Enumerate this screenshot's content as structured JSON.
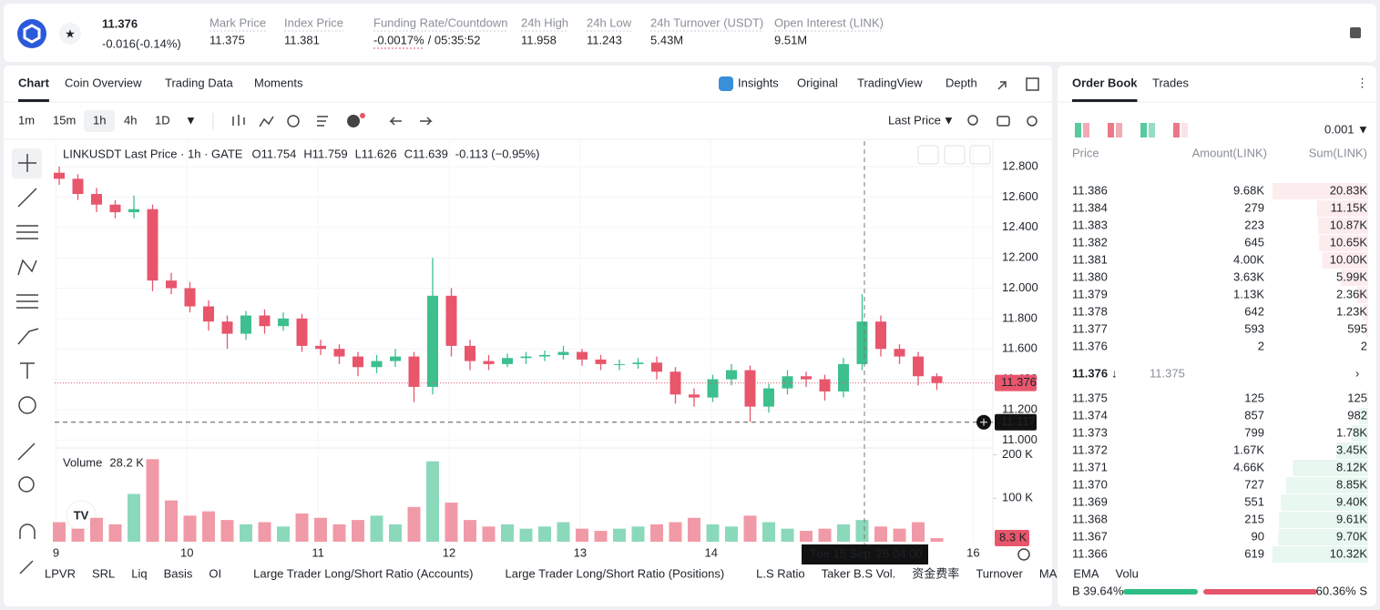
{
  "header": {
    "price": "11.376",
    "change": "-0.016(-0.14%)",
    "stats": [
      {
        "label": "Mark Price",
        "value": "11.375"
      },
      {
        "label": "Index Price",
        "value": "11.381"
      },
      {
        "label": "Funding Rate/Countdown",
        "value": "-0.0017%",
        "extra": "/ 05:35:52"
      },
      {
        "label": "24h High",
        "value": "11.958"
      },
      {
        "label": "24h Low",
        "value": "11.243"
      },
      {
        "label": "24h Turnover (USDT)",
        "value": "5.43M"
      },
      {
        "label": "Open Interest (LINK)",
        "value": "9.51M"
      }
    ]
  },
  "tabs": [
    "Chart",
    "Coin Overview",
    "Trading Data",
    "Moments"
  ],
  "views": [
    "Insights",
    "Original",
    "TradingView",
    "Depth"
  ],
  "intervals": [
    "1m",
    "15m",
    "1h",
    "4h",
    "1D"
  ],
  "price_type": "Last Price",
  "indicators": [
    "LPVR",
    "SRL",
    "Liq",
    "Basis",
    "OI",
    "Large Trader Long/Short Ratio (Accounts)",
    "Large Trader Long/Short Ratio (Positions)",
    "L.S Ratio",
    "Taker B.S Vol.",
    "资金费率",
    "Turnover",
    "MA",
    "EMA",
    "Volu"
  ],
  "chart": {
    "type": "candlestick",
    "legend": "LINKUSDT Last Price · 1h · GATE",
    "ohlc": [
      "O11.754",
      "H11.759",
      "L11.626",
      "C11.639"
    ],
    "legend_change": "-0.113 (−0.95%)",
    "up_color": "#3dbf8e",
    "down_color": "#e8566c",
    "ylim": [
      10.96,
      12.95
    ],
    "yticks": [
      {
        "value": 11.0,
        "label": "11.000"
      },
      {
        "value": 11.2,
        "label": "11.200"
      },
      {
        "value": 11.4,
        "label": "11.400"
      },
      {
        "value": 11.6,
        "label": "11.600"
      },
      {
        "value": 11.8,
        "label": "11.800"
      },
      {
        "value": 12.0,
        "label": "12.000"
      },
      {
        "value": 12.2,
        "label": "12.200"
      },
      {
        "value": 12.4,
        "label": "12.400"
      },
      {
        "value": 12.6,
        "label": "12.600"
      },
      {
        "value": 12.8,
        "label": "12.800"
      }
    ],
    "xlim": [
      8.99,
      16.15
    ],
    "xticks": [
      9,
      10,
      11,
      12,
      13,
      14,
      16
    ],
    "candles": {
      "open": [
        12.76,
        12.72,
        12.62,
        12.55,
        12.5,
        12.52,
        12.05,
        12.0,
        11.88,
        11.78,
        11.7,
        11.82,
        11.75,
        11.8,
        11.62,
        11.6,
        11.55,
        11.48,
        11.52,
        11.55,
        11.35,
        11.95,
        11.62,
        11.52,
        11.5,
        11.54,
        11.55,
        11.56,
        11.58,
        11.53,
        11.5,
        11.5,
        11.51,
        11.45,
        11.3,
        11.28,
        11.4,
        11.46,
        11.22,
        11.34,
        11.42,
        11.4,
        11.32,
        11.5,
        11.78,
        11.6,
        11.55,
        11.42
      ],
      "high": [
        12.8,
        12.75,
        12.66,
        12.58,
        12.61,
        12.55,
        12.1,
        12.04,
        11.92,
        11.82,
        11.85,
        11.86,
        11.84,
        11.83,
        11.66,
        11.63,
        11.58,
        11.56,
        11.6,
        11.58,
        12.2,
        12.0,
        11.66,
        11.56,
        11.57,
        11.58,
        11.59,
        11.62,
        11.6,
        11.56,
        11.53,
        11.54,
        11.55,
        11.48,
        11.34,
        11.43,
        11.5,
        11.49,
        11.37,
        11.46,
        11.45,
        11.43,
        11.54,
        11.96,
        11.82,
        11.63,
        11.58,
        11.44
      ],
      "low": [
        12.68,
        12.58,
        12.5,
        12.46,
        12.46,
        11.98,
        11.96,
        11.84,
        11.72,
        11.6,
        11.66,
        11.7,
        11.72,
        11.58,
        11.56,
        11.5,
        11.42,
        11.44,
        11.48,
        11.25,
        11.3,
        11.55,
        11.46,
        11.46,
        11.48,
        11.5,
        11.52,
        11.53,
        11.49,
        11.46,
        11.46,
        11.47,
        11.4,
        11.24,
        11.22,
        11.25,
        11.36,
        11.12,
        11.18,
        11.3,
        11.35,
        11.26,
        11.28,
        11.46,
        11.55,
        11.5,
        11.36,
        11.33
      ],
      "close": [
        12.72,
        12.62,
        12.55,
        12.5,
        12.52,
        12.05,
        12.0,
        11.88,
        11.78,
        11.7,
        11.82,
        11.75,
        11.8,
        11.62,
        11.6,
        11.55,
        11.48,
        11.52,
        11.55,
        11.35,
        11.95,
        11.62,
        11.52,
        11.5,
        11.54,
        11.55,
        11.56,
        11.58,
        11.53,
        11.5,
        11.5,
        11.51,
        11.45,
        11.3,
        11.28,
        11.4,
        11.46,
        11.22,
        11.34,
        11.42,
        11.4,
        11.32,
        11.5,
        11.78,
        11.6,
        11.55,
        11.42,
        11.376
      ]
    },
    "last_price": 11.376,
    "crosshair_price": 11.117,
    "crosshair_date": "Tue 15 Sep '26",
    "crosshair_time": "04:00",
    "volume_title": "Volume",
    "volume_hover": "28.2 K",
    "volume_last": "8.3 K",
    "volume_ylim": [
      0,
      220000
    ],
    "volume_ticks": [
      {
        "value": 100000,
        "label": "100 K"
      },
      {
        "value": 200000,
        "label": "200 K"
      }
    ],
    "volume": [
      45000,
      30000,
      55000,
      40000,
      110000,
      190000,
      95000,
      60000,
      70000,
      50000,
      40000,
      45000,
      35000,
      65000,
      55000,
      40000,
      50000,
      60000,
      40000,
      80000,
      185000,
      90000,
      50000,
      35000,
      40000,
      30000,
      35000,
      45000,
      30000,
      25000,
      30000,
      35000,
      40000,
      45000,
      55000,
      40000,
      35000,
      60000,
      45000,
      30000,
      25000,
      30000,
      40000,
      50000,
      35000,
      30000,
      45000,
      8300
    ]
  },
  "order_book": {
    "tabs": [
      "Order Book",
      "Trades"
    ],
    "precision": "0.001",
    "columns": [
      "Price",
      "Amount(LINK)",
      "Sum(LINK)"
    ],
    "asks": [
      {
        "price": "11.386",
        "amount": "9.68K",
        "sum": {
          "value": 20830,
          "label": "20.83K"
        }
      },
      {
        "price": "11.384",
        "amount": "279",
        "sum": {
          "value": 11150,
          "label": "11.15K"
        }
      },
      {
        "price": "11.383",
        "amount": "223",
        "sum": {
          "value": 10870,
          "label": "10.87K"
        }
      },
      {
        "price": "11.382",
        "amount": "645",
        "sum": {
          "value": 10650,
          "label": "10.65K"
        }
      },
      {
        "price": "11.381",
        "amount": "4.00K",
        "sum": {
          "value": 10000,
          "label": "10.00K"
        }
      },
      {
        "price": "11.380",
        "amount": "3.63K",
        "sum": {
          "value": 5990,
          "label": "5.99K"
        }
      },
      {
        "price": "11.379",
        "amount": "1.13K",
        "sum": {
          "value": 2360,
          "label": "2.36K"
        }
      },
      {
        "price": "11.378",
        "amount": "642",
        "sum": {
          "value": 1230,
          "label": "1.23K"
        }
      },
      {
        "price": "11.377",
        "amount": "593",
        "sum": 595
      },
      {
        "price": "11.376",
        "amount": "2",
        "sum": 2
      }
    ],
    "mid_price": "11.376",
    "mark_price": "11.375",
    "bids": [
      {
        "price": "11.375",
        "amount": "125",
        "sum": 125
      },
      {
        "price": "11.374",
        "amount": "857",
        "sum": 982
      },
      {
        "price": "11.373",
        "amount": "799",
        "sum": {
          "value": 1780,
          "label": "1.78K"
        }
      },
      {
        "price": "11.372",
        "amount": "1.67K",
        "sum": {
          "value": 3450,
          "label": "3.45K"
        }
      },
      {
        "price": "11.371",
        "amount": "4.66K",
        "sum": {
          "value": 8120,
          "label": "8.12K"
        }
      },
      {
        "price": "11.370",
        "amount": "727",
        "sum": {
          "value": 8850,
          "label": "8.85K"
        }
      },
      {
        "price": "11.369",
        "amount": "551",
        "sum": {
          "value": 9400,
          "label": "9.40K"
        }
      },
      {
        "price": "11.368",
        "amount": "215",
        "sum": {
          "value": 9610,
          "label": "9.61K"
        }
      },
      {
        "price": "11.367",
        "amount": "90",
        "sum": {
          "value": 9700,
          "label": "9.70K"
        }
      },
      {
        "price": "11.366",
        "amount": "619",
        "sum": {
          "value": 10320,
          "label": "10.32K"
        }
      }
    ],
    "buy_ratio": 39.64,
    "buy_label": "B 39.64%",
    "sell_ratio": 60.36,
    "sell_label": "60.36% S"
  }
}
